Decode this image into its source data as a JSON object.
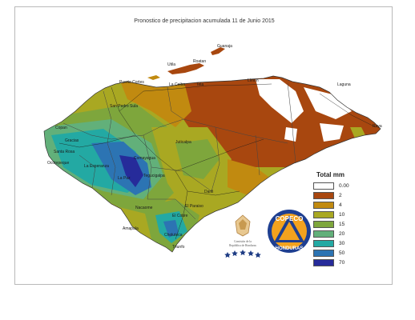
{
  "title": "Pronostico de precipitacion acumulada 11 de Junio 2015",
  "legend": {
    "title": "Total mm",
    "items": [
      {
        "label": "0.00",
        "color": "#ffffff"
      },
      {
        "label": "2",
        "color": "#a8470f"
      },
      {
        "label": "4",
        "color": "#c18a10"
      },
      {
        "label": "10",
        "color": "#a9a822"
      },
      {
        "label": "15",
        "color": "#7ea63c"
      },
      {
        "label": "20",
        "color": "#62b07a"
      },
      {
        "label": "30",
        "color": "#23a9a3"
      },
      {
        "label": "50",
        "color": "#2c74b3"
      },
      {
        "label": "70",
        "color": "#262b9a"
      }
    ]
  },
  "places": {
    "guanaja": "Guanaja",
    "utila": "Utila",
    "roatan": "Roatan",
    "la_ceiba": "La Ceiba",
    "tela": "Tela",
    "limon": "Limon",
    "laguna": "Laguna",
    "puerto_cortes": "Puerto Cortes",
    "puerto_lempira": "Raya",
    "sps": "San Pedro Sula",
    "el_paraiso": "El Paraiso",
    "juticalpa": "Juticalpa",
    "danli": "Danli",
    "choluteca": "Choluteca",
    "amapala": "Amapala",
    "el_cobre": "El Cobre",
    "gracias": "Gracias",
    "la_esperanza": "La Esperanza",
    "santa_rosa": "Santa Rosa",
    "copan": "Copan",
    "ocotepeque": "Ocotepeque",
    "comayagua": "Comayagua",
    "la_paz": "La Paz",
    "nacaome": "Nacaome",
    "triunfo": "Triunfo",
    "tegucigalpa": "Tegucigalpa"
  },
  "logos": {
    "gov_text_1": "Comisión de la",
    "gov_text_2": "República de Honduras",
    "copeco_top": "COPECO",
    "copeco_bottom": "HONDURAS"
  }
}
